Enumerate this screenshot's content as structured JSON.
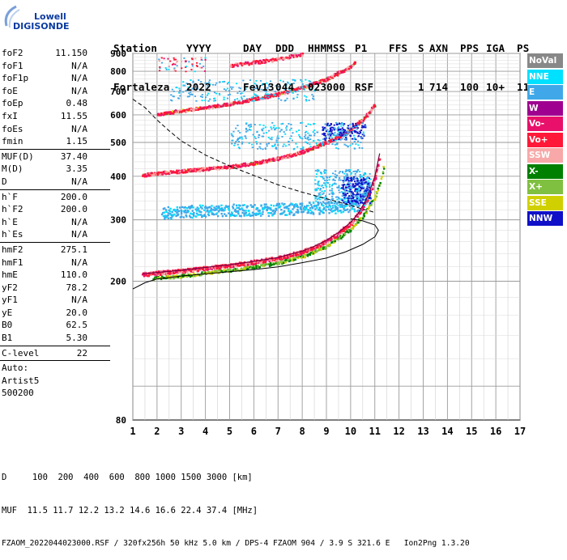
{
  "logo": {
    "line1": "Lowell",
    "line2": "DIGISONDE"
  },
  "header": {
    "columns": [
      "Station",
      "YYYY",
      "DAY",
      "DDD",
      "HHMMSS",
      "P1",
      "FFS",
      "S",
      "AXN",
      "PPS",
      "IGA",
      "PS"
    ],
    "values": [
      "Fortaleza",
      "2022",
      "Fev13",
      "044",
      "023000",
      "RSF",
      "",
      "1",
      "714",
      "100",
      "10+",
      "11"
    ]
  },
  "params": {
    "group1": [
      {
        "name": "foF2",
        "value": "11.150"
      },
      {
        "name": "foF1",
        "value": "N/A"
      },
      {
        "name": "foF1p",
        "value": "N/A"
      },
      {
        "name": "foE",
        "value": "N/A"
      },
      {
        "name": "foEp",
        "value": "0.48"
      },
      {
        "name": "fxI",
        "value": "11.55"
      },
      {
        "name": "foEs",
        "value": "N/A"
      },
      {
        "name": "fmin",
        "value": "1.15"
      }
    ],
    "group2": [
      {
        "name": "MUF(D)",
        "value": "37.40"
      },
      {
        "name": "M(D)",
        "value": "3.35"
      },
      {
        "name": "D",
        "value": "N/A"
      }
    ],
    "group3": [
      {
        "name": "h`F",
        "value": "200.0"
      },
      {
        "name": "h`F2",
        "value": "200.0"
      },
      {
        "name": "h`E",
        "value": "N/A"
      },
      {
        "name": "h`Es",
        "value": "N/A"
      }
    ],
    "group4": [
      {
        "name": "hmF2",
        "value": "275.1"
      },
      {
        "name": "hmF1",
        "value": "N/A"
      },
      {
        "name": "hmE",
        "value": "110.0"
      },
      {
        "name": "yF2",
        "value": "78.2"
      },
      {
        "name": "yF1",
        "value": "N/A"
      },
      {
        "name": "yE",
        "value": "20.0"
      },
      {
        "name": "B0",
        "value": "62.5"
      },
      {
        "name": "B1",
        "value": "5.30"
      }
    ],
    "group5": [
      {
        "name": "C-level",
        "value": "22"
      }
    ],
    "auto": {
      "line1": "Auto:",
      "line2": "Artist5",
      "line3": "500200"
    }
  },
  "legend": [
    {
      "label": "NoVal",
      "color": "#888888"
    },
    {
      "label": "NNE",
      "color": "#00e0ff"
    },
    {
      "label": "E",
      "color": "#40a8e8"
    },
    {
      "label": "W",
      "color": "#a00090"
    },
    {
      "label": "Vo-",
      "color": "#e8106a"
    },
    {
      "label": "Vo+",
      "color": "#ff1838"
    },
    {
      "label": "SSW",
      "color": "#f8a8a8"
    },
    {
      "label": "X-",
      "color": "#008000"
    },
    {
      "label": "X+",
      "color": "#80c040"
    },
    {
      "label": "SSE",
      "color": "#d0d000"
    },
    {
      "label": "NNW",
      "color": "#1010c8"
    }
  ],
  "footer": {
    "d_line": "D     100  200  400  600  800 1000 1500 3000 [km]",
    "muf_line": "MUF  11.5 11.7 12.2 13.2 14.6 16.6 22.4 37.4 [MHz]",
    "file_line": "FZAOM_2022044023000.RSF / 320fx256h 50 kHz 5.0 km / DPS-4 FZAOM 904 / 3.9 S 321.6 E   Ion2Png 1.3.20"
  },
  "chart_data": {
    "type": "scatter",
    "xlim": [
      1,
      17
    ],
    "ylim": [
      80,
      900
    ],
    "xticks": [
      1,
      2,
      3,
      4,
      5,
      6,
      7,
      8,
      9,
      10,
      11,
      12,
      13,
      14,
      15,
      16,
      17
    ],
    "yticks": [
      80,
      200,
      300,
      400,
      500,
      600,
      700,
      800,
      900
    ],
    "y_scale": "log",
    "grid": true,
    "traces": [
      {
        "name": "O-trace",
        "points": [
          [
            1.4,
            210
          ],
          [
            2,
            212
          ],
          [
            3,
            215
          ],
          [
            4,
            219
          ],
          [
            5,
            223
          ],
          [
            6,
            228
          ],
          [
            7,
            234
          ],
          [
            8,
            244
          ],
          [
            8.5,
            252
          ],
          [
            9,
            262
          ],
          [
            9.5,
            276
          ],
          [
            10,
            295
          ],
          [
            10.3,
            312
          ],
          [
            10.6,
            338
          ],
          [
            10.8,
            365
          ],
          [
            11,
            400
          ],
          [
            11.1,
            430
          ],
          [
            11.2,
            465
          ]
        ]
      },
      {
        "name": "X-trace",
        "points": [
          [
            1.8,
            205
          ],
          [
            3,
            208
          ],
          [
            4,
            212
          ],
          [
            5,
            216
          ],
          [
            6,
            221
          ],
          [
            7,
            227
          ],
          [
            8,
            237
          ],
          [
            9,
            253
          ],
          [
            10,
            283
          ],
          [
            10.5,
            310
          ],
          [
            11,
            352
          ],
          [
            11.2,
            385
          ],
          [
            11.4,
            440
          ]
        ]
      },
      {
        "name": "2nd hop",
        "points": [
          [
            1.4,
            405
          ],
          [
            2,
            410
          ],
          [
            3,
            415
          ],
          [
            4,
            422
          ],
          [
            5,
            428
          ],
          [
            6,
            438
          ],
          [
            7,
            452
          ],
          [
            8,
            472
          ],
          [
            9,
            502
          ],
          [
            9.5,
            522
          ],
          [
            10,
            548
          ],
          [
            10.5,
            585
          ],
          [
            10.8,
            620
          ],
          [
            11,
            650
          ]
        ]
      },
      {
        "name": "3rd hop",
        "points": [
          [
            2,
            605
          ],
          [
            3,
            620
          ],
          [
            4,
            632
          ],
          [
            5,
            648
          ],
          [
            6,
            668
          ],
          [
            7,
            692
          ],
          [
            8,
            722
          ],
          [
            9,
            765
          ],
          [
            9.5,
            795
          ],
          [
            10,
            830
          ],
          [
            10.2,
            855
          ]
        ]
      },
      {
        "name": "4th hop",
        "points": [
          [
            5,
            835
          ],
          [
            6,
            852
          ],
          [
            7,
            870
          ],
          [
            7.5,
            885
          ],
          [
            8,
            900
          ]
        ]
      },
      {
        "name": "Es",
        "points": [
          [
            2.2,
            315
          ],
          [
            3,
            318
          ],
          [
            4,
            320
          ],
          [
            5,
            322
          ],
          [
            6,
            322
          ],
          [
            7,
            323
          ],
          [
            8,
            325
          ],
          [
            9,
            327
          ],
          [
            10,
            330
          ],
          [
            10.4,
            333
          ]
        ]
      }
    ],
    "spread": [
      {
        "name": "spread-F cluster",
        "points": [
          [
            8.8,
            400
          ],
          [
            9.3,
            395
          ],
          [
            9.8,
            390
          ],
          [
            10.3,
            385
          ],
          [
            10.6,
            380
          ]
        ]
      },
      {
        "name": "NNW cluster",
        "points": [
          [
            8.5,
            335
          ],
          [
            9,
            340
          ],
          [
            9.6,
            345
          ],
          [
            10.2,
            355
          ],
          [
            10.6,
            375
          ]
        ]
      }
    ],
    "profile": [
      [
        1,
        190
      ],
      [
        1.5,
        198
      ],
      [
        2,
        203
      ],
      [
        3,
        207
      ],
      [
        4,
        210
      ],
      [
        5,
        213
      ],
      [
        6,
        216
      ],
      [
        7,
        220
      ],
      [
        8,
        226
      ],
      [
        9,
        233
      ],
      [
        9.8,
        243
      ],
      [
        10.5,
        255
      ],
      [
        11,
        268
      ],
      [
        11.15,
        280
      ],
      [
        11,
        290
      ],
      [
        10.5,
        298
      ],
      [
        10,
        302
      ]
    ],
    "muf_curve": [
      [
        1,
        665
      ],
      [
        1.5,
        630
      ],
      [
        2,
        580
      ],
      [
        2.5,
        540
      ],
      [
        3,
        505
      ],
      [
        4,
        460
      ],
      [
        5,
        428
      ],
      [
        6,
        402
      ],
      [
        7,
        378
      ],
      [
        8,
        360
      ],
      [
        9,
        345
      ],
      [
        10,
        330
      ],
      [
        10.5,
        322
      ],
      [
        11,
        315
      ]
    ]
  }
}
